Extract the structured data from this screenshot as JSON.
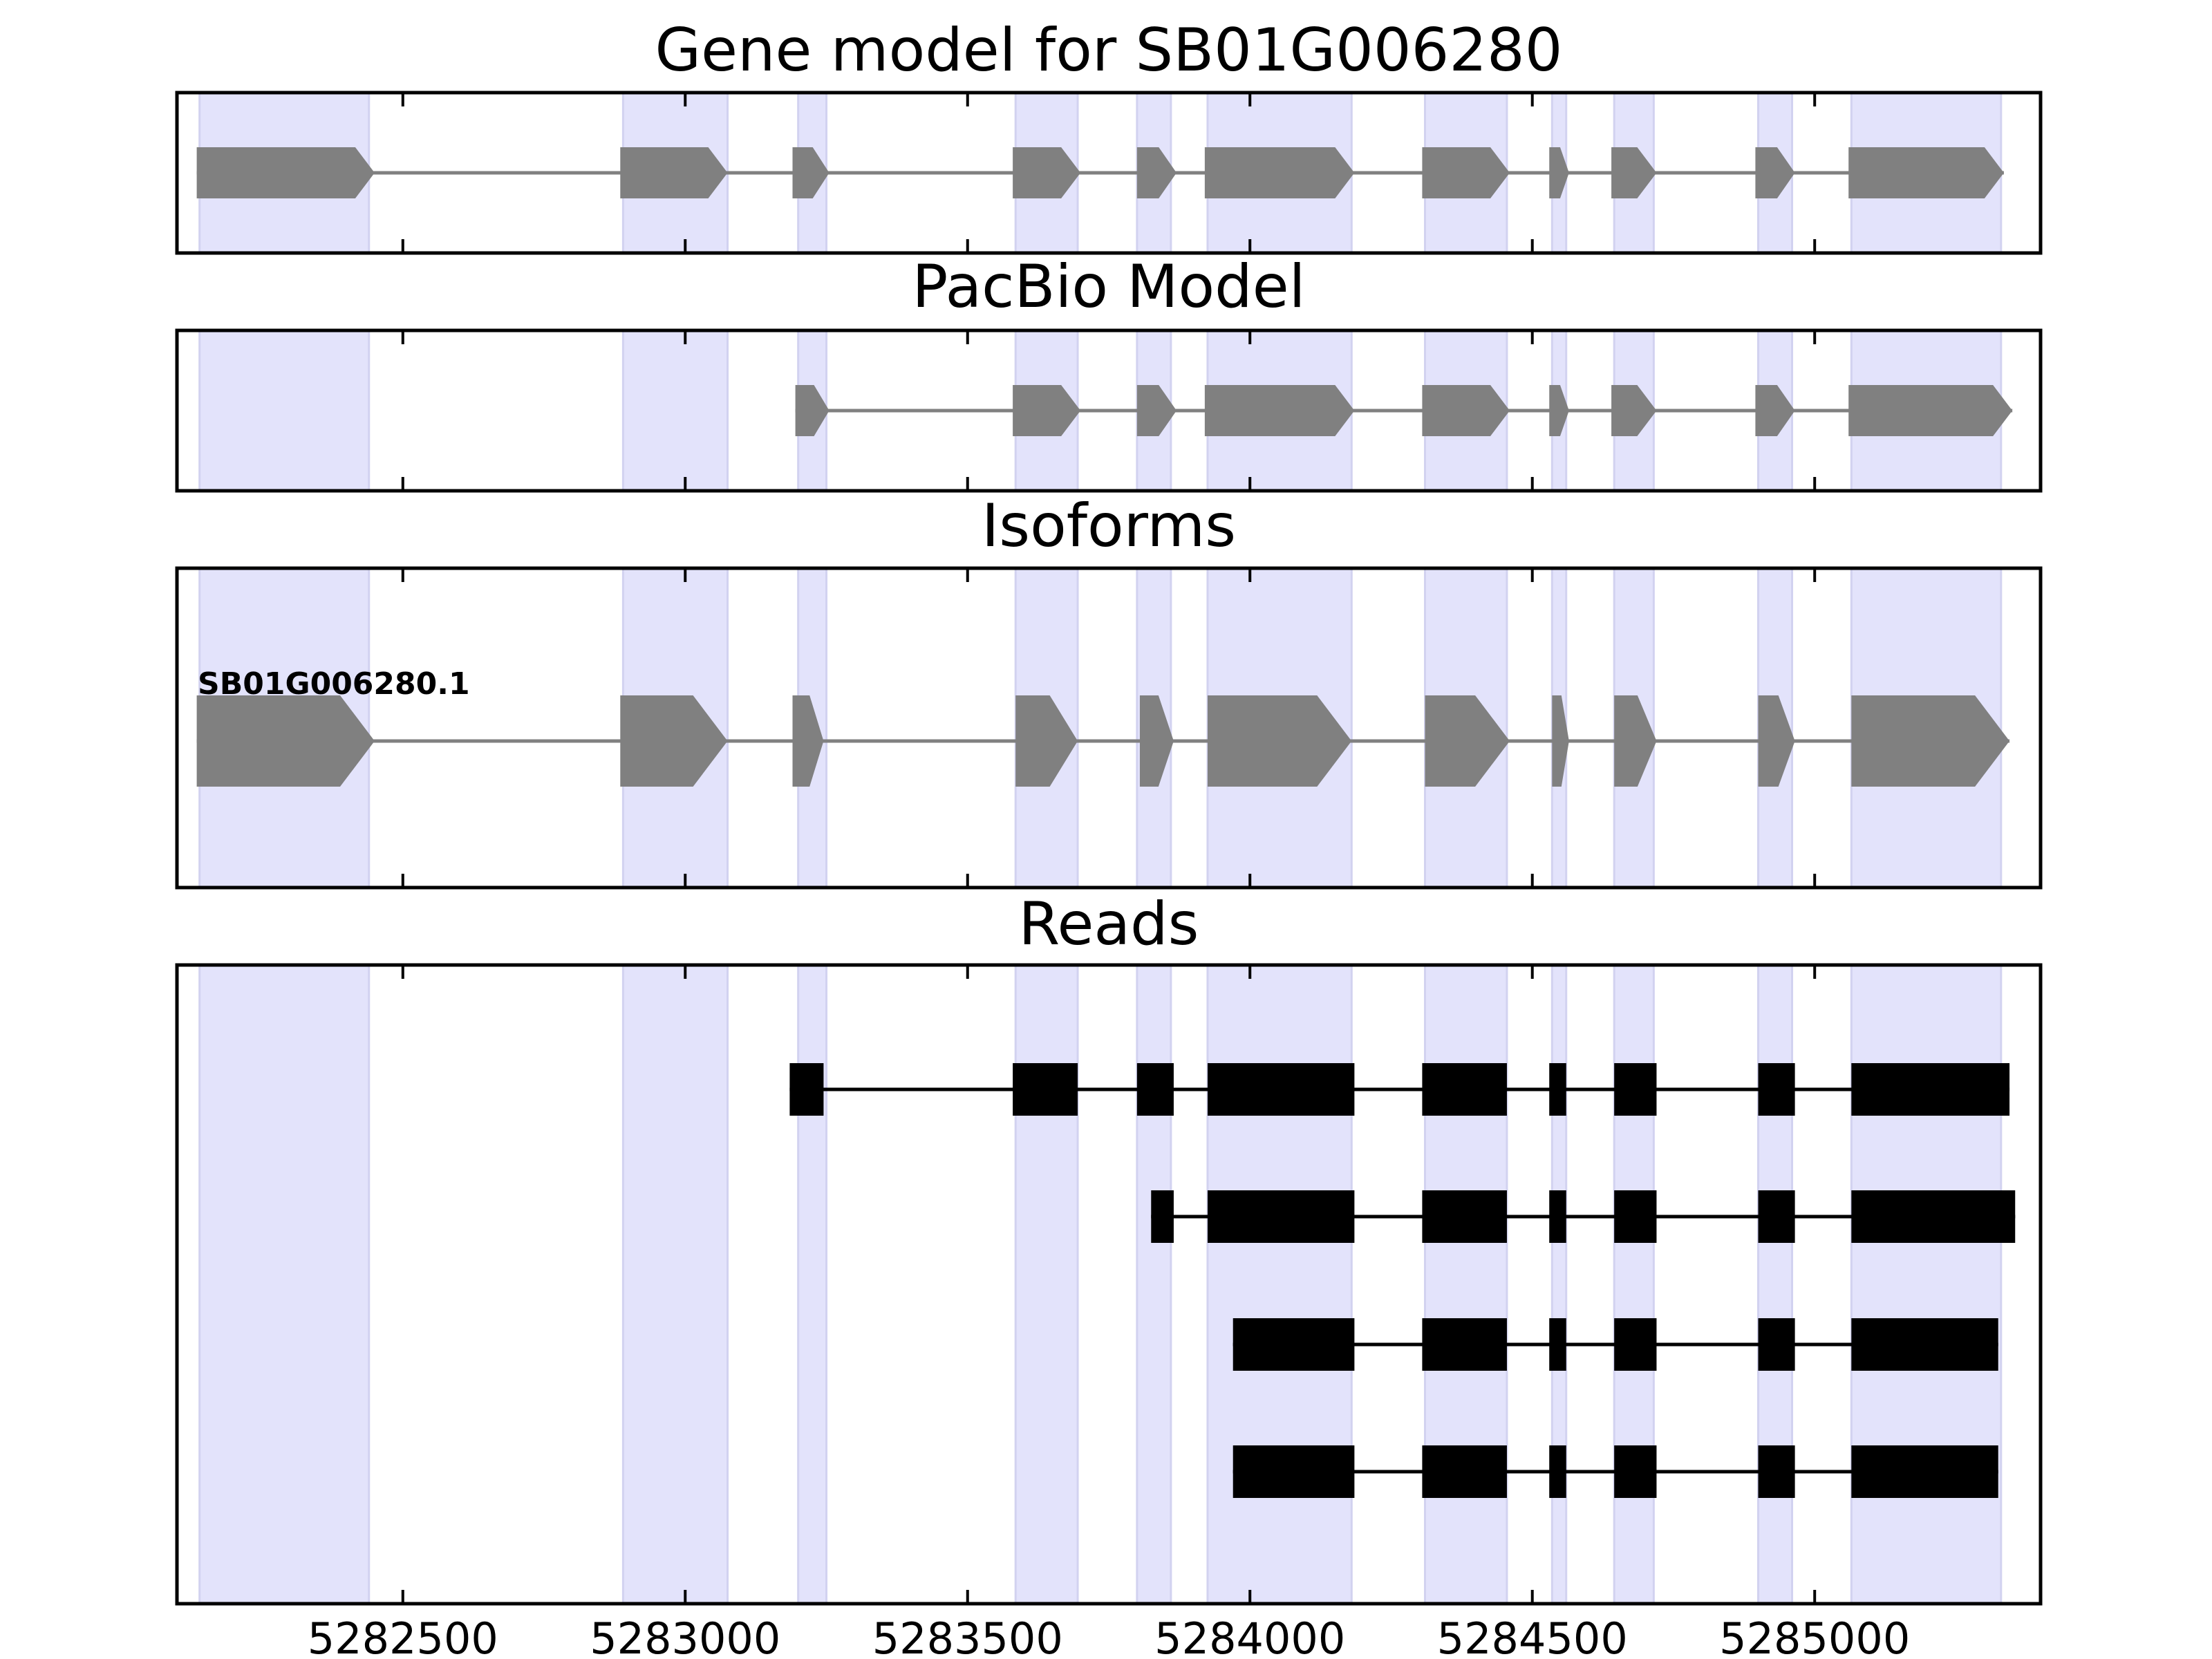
{
  "colors": {
    "exon_band": "#e3e3fb",
    "model_feature": "#808080",
    "read_feature": "#000000",
    "frame": "#000000",
    "background": "#ffffff"
  },
  "chart_data": {
    "type": "gene_model_tracks",
    "x_axis": {
      "ticks": [
        5282500,
        5283000,
        5283500,
        5284000,
        5284500,
        5285000
      ],
      "tick_labels": [
        "5282500",
        "5283000",
        "5283500",
        "5284000",
        "5284500",
        "5285000"
      ],
      "xlim": [
        5282100,
        5285400
      ]
    },
    "exon_bands": [
      [
        5282140,
        5282440
      ],
      [
        5282890,
        5283075
      ],
      [
        5283200,
        5283250
      ],
      [
        5283585,
        5283695
      ],
      [
        5283800,
        5283860
      ],
      [
        5283925,
        5284180
      ],
      [
        5284310,
        5284455
      ],
      [
        5284535,
        5284560
      ],
      [
        5284645,
        5284715
      ],
      [
        5284900,
        5284960
      ],
      [
        5285065,
        5285330
      ]
    ],
    "panels": [
      {
        "key": "gene_model",
        "title": "Gene model for SB01G006280",
        "strand": "+",
        "exons": [
          [
            5282135,
            5282450
          ],
          [
            5282885,
            5283075
          ],
          [
            5283190,
            5283255
          ],
          [
            5283580,
            5283700
          ],
          [
            5283800,
            5283870
          ],
          [
            5283920,
            5284185
          ],
          [
            5284305,
            5284460
          ],
          [
            5284530,
            5284565
          ],
          [
            5284640,
            5284720
          ],
          [
            5284895,
            5284965
          ],
          [
            5285060,
            5285335
          ]
        ]
      },
      {
        "key": "pacbio",
        "title": "PacBio Model",
        "strand": "+",
        "exons": [
          [
            5283195,
            5283255
          ],
          [
            5283580,
            5283700
          ],
          [
            5283800,
            5283870
          ],
          [
            5283920,
            5284185
          ],
          [
            5284305,
            5284460
          ],
          [
            5284530,
            5284565
          ],
          [
            5284640,
            5284720
          ],
          [
            5284895,
            5284965
          ],
          [
            5285060,
            5285350
          ]
        ]
      },
      {
        "key": "isoforms",
        "title": "Isoforms",
        "label": "SB01G006280.1",
        "strand": "+",
        "exons": [
          [
            5282135,
            5282450
          ],
          [
            5282885,
            5283075
          ],
          [
            5283190,
            5283245
          ],
          [
            5283585,
            5283695
          ],
          [
            5283805,
            5283865
          ],
          [
            5283925,
            5284180
          ],
          [
            5284310,
            5284460
          ],
          [
            5284535,
            5284565
          ],
          [
            5284645,
            5284720
          ],
          [
            5284900,
            5284965
          ],
          [
            5285065,
            5285345
          ]
        ]
      },
      {
        "key": "reads",
        "title": "Reads",
        "reads": [
          [
            [
              5283185,
              5283245
            ],
            [
              5283580,
              5283695
            ],
            [
              5283800,
              5283865
            ],
            [
              5283925,
              5284185
            ],
            [
              5284305,
              5284455
            ],
            [
              5284530,
              5284560
            ],
            [
              5284645,
              5284720
            ],
            [
              5284900,
              5284965
            ],
            [
              5285065,
              5285345
            ]
          ],
          [
            [
              5283825,
              5283865
            ],
            [
              5283925,
              5284185
            ],
            [
              5284305,
              5284455
            ],
            [
              5284530,
              5284560
            ],
            [
              5284645,
              5284720
            ],
            [
              5284900,
              5284965
            ],
            [
              5285065,
              5285355
            ]
          ],
          [
            [
              5283970,
              5284185
            ],
            [
              5284305,
              5284455
            ],
            [
              5284530,
              5284560
            ],
            [
              5284645,
              5284720
            ],
            [
              5284900,
              5284965
            ],
            [
              5285065,
              5285325
            ]
          ],
          [
            [
              5283970,
              5284185
            ],
            [
              5284305,
              5284455
            ],
            [
              5284530,
              5284560
            ],
            [
              5284645,
              5284720
            ],
            [
              5284900,
              5284965
            ],
            [
              5285065,
              5285325
            ]
          ]
        ]
      }
    ]
  }
}
